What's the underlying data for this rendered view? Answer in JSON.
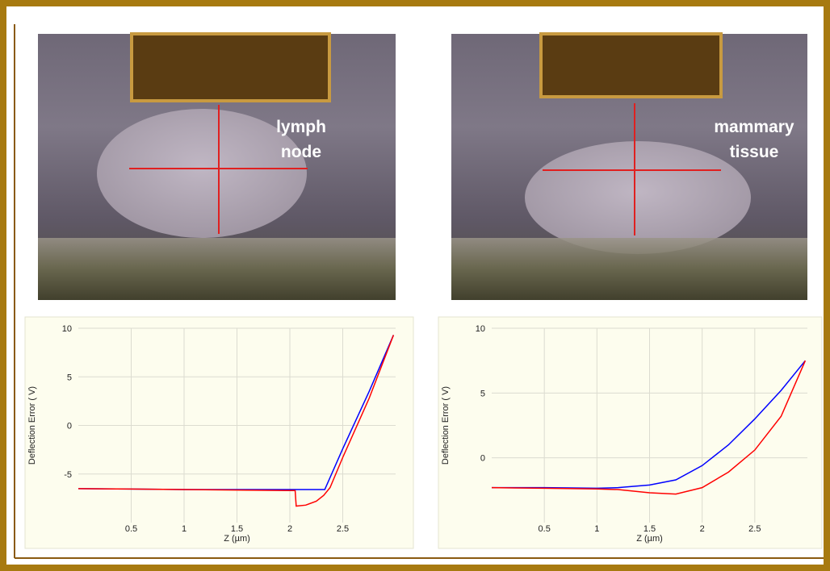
{
  "photos": [
    {
      "label_lines": [
        "lymph",
        "node"
      ]
    },
    {
      "label_lines": [
        "mammary",
        "tissue"
      ]
    }
  ],
  "chart_data": [
    {
      "type": "line",
      "x_label": "Z (µm)",
      "y_label": "Deflection Error ( V)",
      "xlim": [
        0,
        3
      ],
      "xticks": [
        0.5,
        1,
        1.5,
        2,
        2.5
      ],
      "ylim": [
        -10,
        10
      ],
      "yticks": [
        -5,
        0,
        5,
        10
      ],
      "grid": true,
      "series": [
        {
          "color": "#0000ff",
          "x": [
            0,
            0.5,
            1,
            1.5,
            2,
            2.33,
            2.5,
            2.75,
            2.98
          ],
          "values": [
            -6.5,
            -6.55,
            -6.6,
            -6.6,
            -6.6,
            -6.6,
            -2.4,
            3.5,
            9.3
          ]
        },
        {
          "color": "#ff0000",
          "x": [
            0,
            0.5,
            1,
            1.5,
            2,
            2.05,
            2.06,
            2.15,
            2.25,
            2.32,
            2.38,
            2.5,
            2.75,
            2.98
          ],
          "values": [
            -6.5,
            -6.55,
            -6.6,
            -6.65,
            -6.7,
            -6.7,
            -8.3,
            -8.2,
            -7.8,
            -7.2,
            -6.4,
            -3.3,
            2.8,
            9.3
          ]
        }
      ]
    },
    {
      "type": "line",
      "x_label": "Z (µm)",
      "y_label": "Deflection Error ( V)",
      "xlim": [
        0,
        3
      ],
      "xticks": [
        0.5,
        1,
        1.5,
        2,
        2.5
      ],
      "ylim": [
        -5,
        10
      ],
      "yticks": [
        0,
        5,
        10
      ],
      "grid": true,
      "series": [
        {
          "color": "#0000ff",
          "x": [
            0,
            0.5,
            1,
            1.2,
            1.5,
            1.75,
            2,
            2.25,
            2.5,
            2.75,
            2.98
          ],
          "values": [
            -2.3,
            -2.3,
            -2.35,
            -2.3,
            -2.1,
            -1.7,
            -0.6,
            1.0,
            3.0,
            5.2,
            7.5
          ]
        },
        {
          "color": "#ff0000",
          "x": [
            0,
            0.5,
            1,
            1.2,
            1.5,
            1.75,
            2,
            2.25,
            2.5,
            2.75,
            2.98
          ],
          "values": [
            -2.3,
            -2.35,
            -2.4,
            -2.45,
            -2.7,
            -2.8,
            -2.3,
            -1.1,
            0.6,
            3.2,
            7.5
          ]
        }
      ]
    }
  ]
}
